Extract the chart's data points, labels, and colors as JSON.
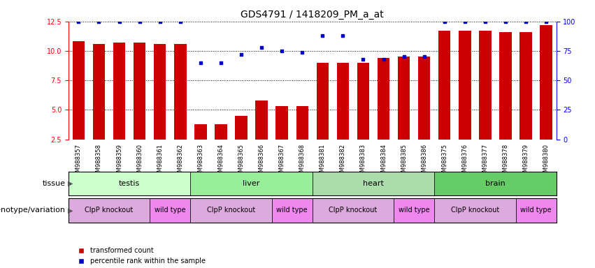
{
  "title": "GDS4791 / 1418209_PM_a_at",
  "samples": [
    "GSM988357",
    "GSM988358",
    "GSM988359",
    "GSM988360",
    "GSM988361",
    "GSM988362",
    "GSM988363",
    "GSM988364",
    "GSM988365",
    "GSM988366",
    "GSM988367",
    "GSM988368",
    "GSM988381",
    "GSM988382",
    "GSM988383",
    "GSM988384",
    "GSM988385",
    "GSM988386",
    "GSM988375",
    "GSM988376",
    "GSM988377",
    "GSM988378",
    "GSM988379",
    "GSM988380"
  ],
  "bar_values": [
    10.8,
    10.6,
    10.7,
    10.7,
    10.6,
    10.6,
    3.8,
    3.8,
    4.5,
    5.8,
    5.3,
    5.3,
    9.0,
    9.0,
    9.0,
    9.4,
    9.5,
    9.5,
    11.7,
    11.7,
    11.7,
    11.6,
    11.6,
    12.2
  ],
  "percentile_values": [
    100,
    100,
    100,
    100,
    100,
    100,
    65,
    65,
    72,
    78,
    75,
    74,
    88,
    88,
    68,
    68,
    70,
    70,
    100,
    100,
    100,
    100,
    100,
    100
  ],
  "bar_color": "#cc0000",
  "percentile_color": "#0000cc",
  "ylim_left": [
    2.5,
    12.5
  ],
  "ylim_right": [
    0,
    100
  ],
  "yticks_left": [
    2.5,
    5.0,
    7.5,
    10.0,
    12.5
  ],
  "yticks_right": [
    0,
    25,
    50,
    75,
    100
  ],
  "tissue_groups": [
    {
      "label": "testis",
      "start": 0,
      "end": 6,
      "color": "#ccffcc"
    },
    {
      "label": "liver",
      "start": 6,
      "end": 12,
      "color": "#99ee99"
    },
    {
      "label": "heart",
      "start": 12,
      "end": 18,
      "color": "#aaddaa"
    },
    {
      "label": "brain",
      "start": 18,
      "end": 24,
      "color": "#66cc66"
    }
  ],
  "genotype_groups": [
    {
      "label": "ClpP knockout",
      "start": 0,
      "end": 4,
      "color": "#ddaadd"
    },
    {
      "label": "wild type",
      "start": 4,
      "end": 6,
      "color": "#ee88ee"
    },
    {
      "label": "ClpP knockout",
      "start": 6,
      "end": 10,
      "color": "#ddaadd"
    },
    {
      "label": "wild type",
      "start": 10,
      "end": 12,
      "color": "#ee88ee"
    },
    {
      "label": "ClpP knockout",
      "start": 12,
      "end": 16,
      "color": "#ddaadd"
    },
    {
      "label": "wild type",
      "start": 16,
      "end": 18,
      "color": "#ee88ee"
    },
    {
      "label": "ClpP knockout",
      "start": 18,
      "end": 22,
      "color": "#ddaadd"
    },
    {
      "label": "wild type",
      "start": 22,
      "end": 24,
      "color": "#ee88ee"
    }
  ],
  "legend_items": [
    {
      "label": "transformed count",
      "color": "#cc0000"
    },
    {
      "label": "percentile rank within the sample",
      "color": "#0000cc"
    }
  ],
  "row_label_tissue": "tissue",
  "row_label_genotype": "genotype/variation",
  "bar_width": 0.6,
  "background_color": "#ffffff",
  "title_fontsize": 10,
  "tick_fontsize": 7,
  "sample_fontsize": 6,
  "label_fontsize": 8,
  "annotation_fontsize": 8
}
